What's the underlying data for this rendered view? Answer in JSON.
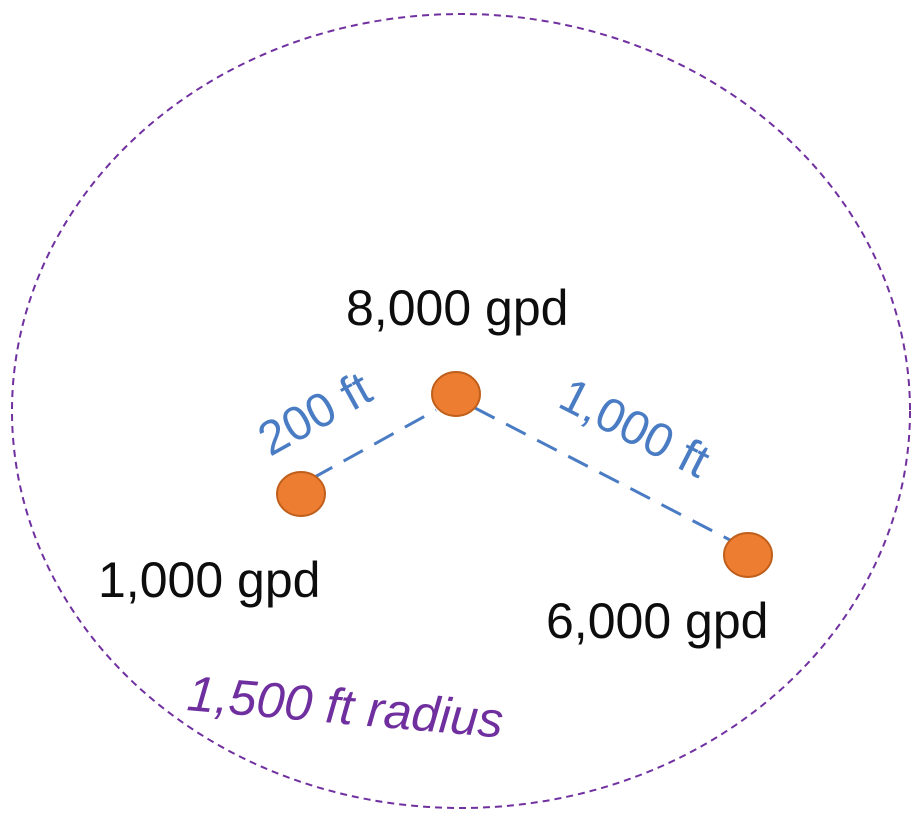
{
  "wells": [
    {
      "flow_label": "8,000 gpd"
    },
    {
      "flow_label": "1,000 gpd"
    },
    {
      "flow_label": "6,000 gpd"
    }
  ],
  "connections": [
    {
      "distance_label": "200 ft"
    },
    {
      "distance_label": "1,000 ft"
    }
  ],
  "radius": {
    "label": "1,500 ft radius"
  },
  "colors": {
    "well_fill": "#ed7d31",
    "well_stroke": "#c05f1b",
    "connection_line": "#4a7cc4",
    "radius_circle": "#7030a0",
    "text": "#0d0d0d"
  }
}
